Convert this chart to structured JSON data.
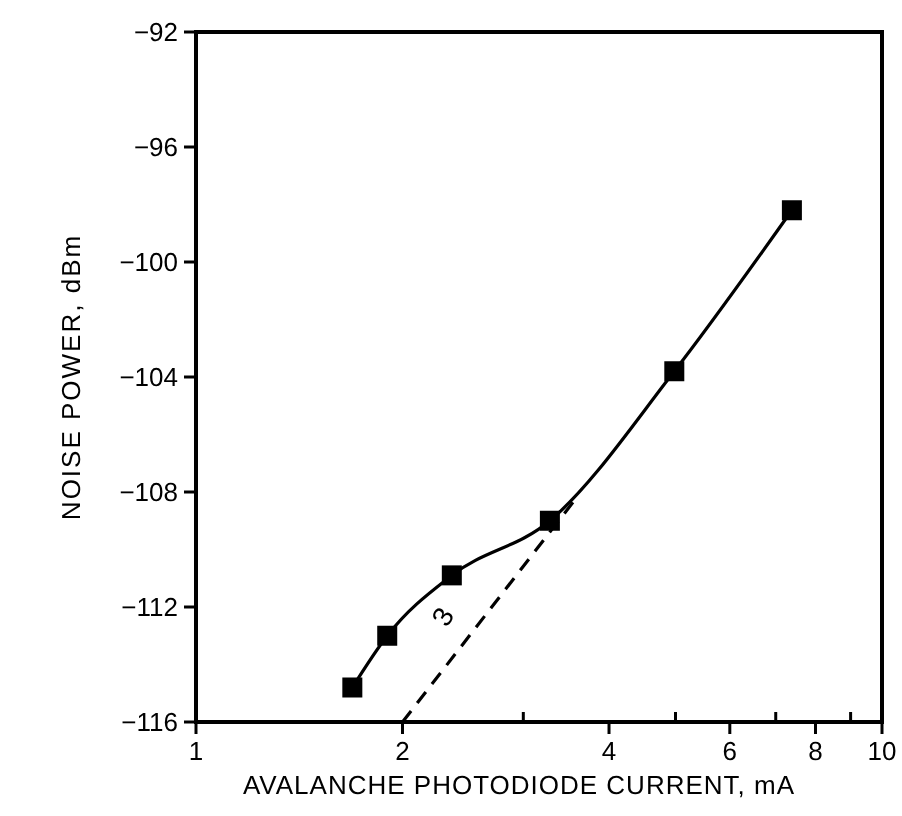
{
  "chart_data": {
    "type": "line",
    "xlabel": "AVALANCHE PHOTODIODE CURRENT, mA",
    "ylabel": "NOISE POWER, dBm",
    "log": "x",
    "xlim": [
      1,
      10
    ],
    "xticks": [
      1,
      2,
      {
        "value": 3,
        "label": null
      },
      4,
      {
        "value": 5,
        "label": null
      },
      6,
      {
        "value": 7,
        "label": null
      },
      8,
      {
        "value": 9,
        "label": null
      },
      10
    ],
    "ylim": [
      -116,
      -92
    ],
    "yticks": [
      -116,
      -112,
      -108,
      -104,
      -100,
      -96,
      -92
    ],
    "grid": false,
    "series": [
      {
        "color": "#000000",
        "marker": "square",
        "line_style": "solid",
        "x": [
          1.69,
          1.9,
          2.36,
          3.28,
          4.98,
          7.39
        ],
        "values": [
          -114.8,
          -113.0,
          -110.9,
          -109.0,
          -103.8,
          -98.2
        ]
      },
      {
        "color": "#000000",
        "marker": "none",
        "line_style": "dashed",
        "x": [
          2,
          3.56
        ],
        "values": [
          -116,
          -108.3
        ]
      }
    ],
    "annotations": [
      "3"
    ]
  }
}
